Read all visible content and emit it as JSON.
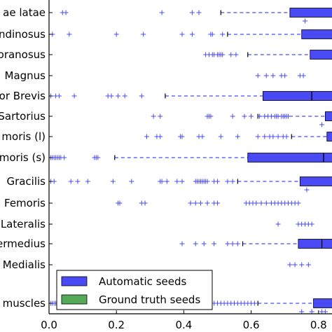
{
  "chart_data": {
    "type": "boxplot-horizontal",
    "title": "",
    "xlabel": "",
    "ylabel": "",
    "xlim": [
      0.0,
      0.84
    ],
    "x_ticks": [
      0.0,
      0.2,
      0.4,
      0.6,
      0.8
    ],
    "x_tick_labels": [
      "0.0",
      "0.2",
      "0.4",
      "0.6",
      "0.8"
    ],
    "grid": false,
    "legend_position": "lower-left",
    "legend": [
      {
        "name": "Automatic seeds",
        "color": "#4a4af5"
      },
      {
        "name": "Ground truth seeds",
        "color": "#55aa55"
      }
    ],
    "categories": [
      "ae latae",
      "ndinosus",
      "oranosus",
      "Magnus",
      "or Brevis",
      "Sartorius",
      "moris (l)",
      "moris (s)",
      "Gracilis",
      "Femoris",
      "Lateralis",
      "ermedius",
      "Medialis",
      "muscles"
    ],
    "series": [
      {
        "name": "Automatic seeds",
        "color": "#4a4af5",
        "boxes": [
          {
            "category": "ae latae",
            "whisker_low": 0.51,
            "q1": 0.715,
            "median": 0.86,
            "q3": 0.9,
            "outliers": [
              0.04,
              0.05,
              0.335,
              0.425,
              0.445
            ]
          },
          {
            "category": "ndinosus",
            "whisker_low": 0.53,
            "q1": 0.75,
            "median": 0.86,
            "q3": 0.9,
            "outliers": [
              0.01,
              0.06,
              0.2,
              0.28,
              0.395,
              0.425,
              0.48,
              0.485,
              0.515
            ]
          },
          {
            "category": "oranosus",
            "whisker_low": 0.59,
            "q1": 0.775,
            "median": 0.86,
            "q3": 0.9,
            "outliers": [
              0.465,
              0.475,
              0.485,
              0.49,
              0.5,
              0.505,
              0.51,
              0.515,
              0.54,
              0.555
            ]
          },
          {
            "category": "Magnus",
            "whisker_low": null,
            "q1": null,
            "median": null,
            "q3": null,
            "outliers": [
              0.62,
              0.645,
              0.665,
              0.69,
              0.7,
              0.745,
              0.755
            ]
          },
          {
            "category": "or Brevis",
            "whisker_low": 0.345,
            "q1": 0.635,
            "median": 0.78,
            "q3": 0.9,
            "outliers": [
              0.005,
              0.02,
              0.03,
              0.075,
              0.175,
              0.185,
              0.205,
              0.225,
              0.275
            ]
          },
          {
            "category": "Sartorius",
            "whisker_low": 0.62,
            "q1": 0.82,
            "median": 0.86,
            "q3": 0.9,
            "outliers": [
              0.31,
              0.33,
              0.47,
              0.475,
              0.48,
              0.545,
              0.58,
              0.6,
              0.625,
              0.64,
              0.65,
              0.66,
              0.67,
              0.675,
              0.68,
              0.69,
              0.695,
              0.7,
              0.705,
              0.71
            ]
          },
          {
            "category": "moris (l)",
            "whisker_low": 0.72,
            "q1": 0.825,
            "median": 0.86,
            "q3": 0.9,
            "outliers": [
              0.29,
              0.32,
              0.33,
              0.39,
              0.395,
              0.445,
              0.455,
              0.51,
              0.56,
              0.62,
              0.64,
              0.655,
              0.665,
              0.68,
              0.695,
              0.705
            ]
          },
          {
            "category": "moris (s)",
            "whisker_low": 0.195,
            "q1": 0.59,
            "median": 0.815,
            "q3": 0.9,
            "outliers": [
              0.005,
              0.01,
              0.015,
              0.02,
              0.025,
              0.03,
              0.035,
              0.045,
              0.135,
              0.14,
              0.145
            ]
          },
          {
            "category": "Gracilis",
            "whisker_low": 0.56,
            "q1": 0.745,
            "median": 0.86,
            "q3": 0.9,
            "outliers": [
              0.005,
              0.015,
              0.065,
              0.085,
              0.115,
              0.19,
              0.245,
              0.33,
              0.335,
              0.35,
              0.38,
              0.395,
              0.435,
              0.44,
              0.445,
              0.45,
              0.455,
              0.46,
              0.465,
              0.47,
              0.49,
              0.5,
              0.53,
              0.545
            ]
          },
          {
            "category": "Femoris",
            "whisker_low": null,
            "q1": null,
            "median": null,
            "q3": null,
            "outliers": [
              0.205,
              0.21,
              0.275,
              0.285,
              0.42,
              0.435,
              0.45,
              0.47,
              0.49,
              0.5,
              0.585,
              0.595,
              0.605,
              0.615,
              0.63,
              0.645,
              0.66,
              0.67,
              0.68,
              0.69,
              0.7,
              0.71,
              0.72,
              0.73,
              0.74
            ]
          },
          {
            "category": "Lateralis",
            "whisker_low": null,
            "q1": null,
            "median": null,
            "q3": null,
            "outliers": [
              0.68,
              0.74,
              0.75,
              0.76,
              0.77,
              0.78
            ]
          },
          {
            "category": "ermedius",
            "whisker_low": 0.575,
            "q1": 0.74,
            "median": 0.81,
            "q3": 0.9,
            "outliers": [
              0.395,
              0.435,
              0.46,
              0.49,
              0.53,
              0.545,
              0.56
            ]
          },
          {
            "category": "Medialis",
            "whisker_low": null,
            "q1": null,
            "median": null,
            "q3": null,
            "outliers": [
              0.715,
              0.73,
              0.75,
              0.77
            ]
          },
          {
            "category": "muscles",
            "whisker_low": 0.62,
            "q1": 0.785,
            "median": 0.86,
            "q3": 0.9,
            "outliers": [
              0.005,
              0.01,
              0.015,
              0.02,
              0.3,
              0.31,
              0.32,
              0.33,
              0.34,
              0.35,
              0.36,
              0.37,
              0.38,
              0.39,
              0.4,
              0.41,
              0.42,
              0.43,
              0.44,
              0.45,
              0.46,
              0.47,
              0.48,
              0.49,
              0.5,
              0.51,
              0.52,
              0.53,
              0.54,
              0.55,
              0.56,
              0.57,
              0.58,
              0.59,
              0.6,
              0.61
            ]
          }
        ]
      },
      {
        "name": "Ground truth seeds",
        "color": "#55aa55",
        "boxes": [
          {
            "category": "ae latae",
            "outliers": [
              0.76
            ]
          },
          {
            "category": "Sartorius",
            "outliers": [
              0.81
            ]
          },
          {
            "category": "Gracilis",
            "outliers": [
              0.765
            ]
          },
          {
            "category": "muscles",
            "outliers": [
              0.75,
              0.78,
              0.81,
              0.82
            ]
          }
        ]
      }
    ]
  }
}
